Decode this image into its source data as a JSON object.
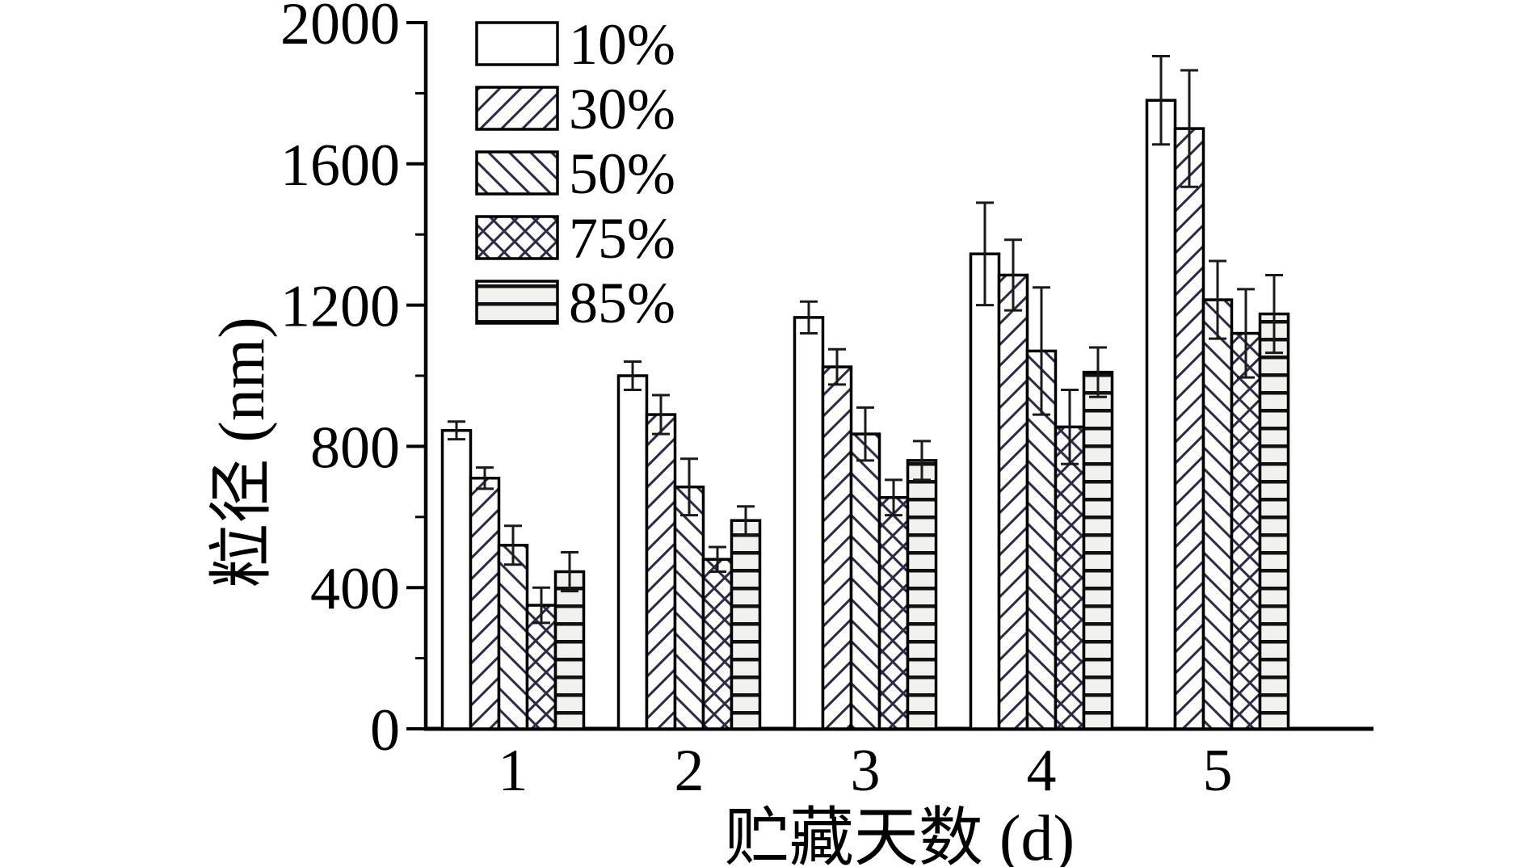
{
  "figure": {
    "background": "#ffffff",
    "axis_color": "#000000",
    "text_color": "#000000",
    "error_bar_color": "#1a1a1a"
  },
  "chart_data": {
    "type": "bar",
    "title": "",
    "xlabel": "贮藏天数 (d)",
    "ylabel": "粒径 (nm)",
    "categories": [
      "1",
      "2",
      "3",
      "4",
      "5"
    ],
    "series": [
      {
        "name": "10%",
        "pattern": "plain",
        "values": [
          845,
          1000,
          1165,
          1345,
          1780
        ],
        "errors": [
          25,
          40,
          45,
          145,
          125
        ]
      },
      {
        "name": "30%",
        "pattern": "diagonal-up",
        "values": [
          710,
          890,
          1025,
          1285,
          1700
        ],
        "errors": [
          30,
          55,
          50,
          100,
          165
        ]
      },
      {
        "name": "50%",
        "pattern": "diagonal-down",
        "values": [
          520,
          685,
          835,
          1070,
          1215
        ],
        "errors": [
          55,
          80,
          75,
          180,
          110
        ]
      },
      {
        "name": "75%",
        "pattern": "crosshatch",
        "values": [
          350,
          480,
          655,
          855,
          1120
        ],
        "errors": [
          50,
          35,
          50,
          105,
          125
        ]
      },
      {
        "name": "85%",
        "pattern": "horizontal-lines",
        "values": [
          445,
          590,
          760,
          1010,
          1175
        ],
        "errors": [
          55,
          40,
          55,
          70,
          110
        ]
      }
    ],
    "ylim": [
      0,
      2000
    ],
    "yticks_major": [
      0,
      400,
      800,
      1200,
      1600,
      2000
    ],
    "yticks_minor": [
      200,
      600,
      1000,
      1400,
      1800
    ],
    "grid": false,
    "legend_position": "upper-left-inside",
    "bar_fill": "#fdfdfc",
    "stripe_fill": "#f1f1ee",
    "hatch_color": "#2b2b45",
    "bar_outline_color": "#000000"
  }
}
